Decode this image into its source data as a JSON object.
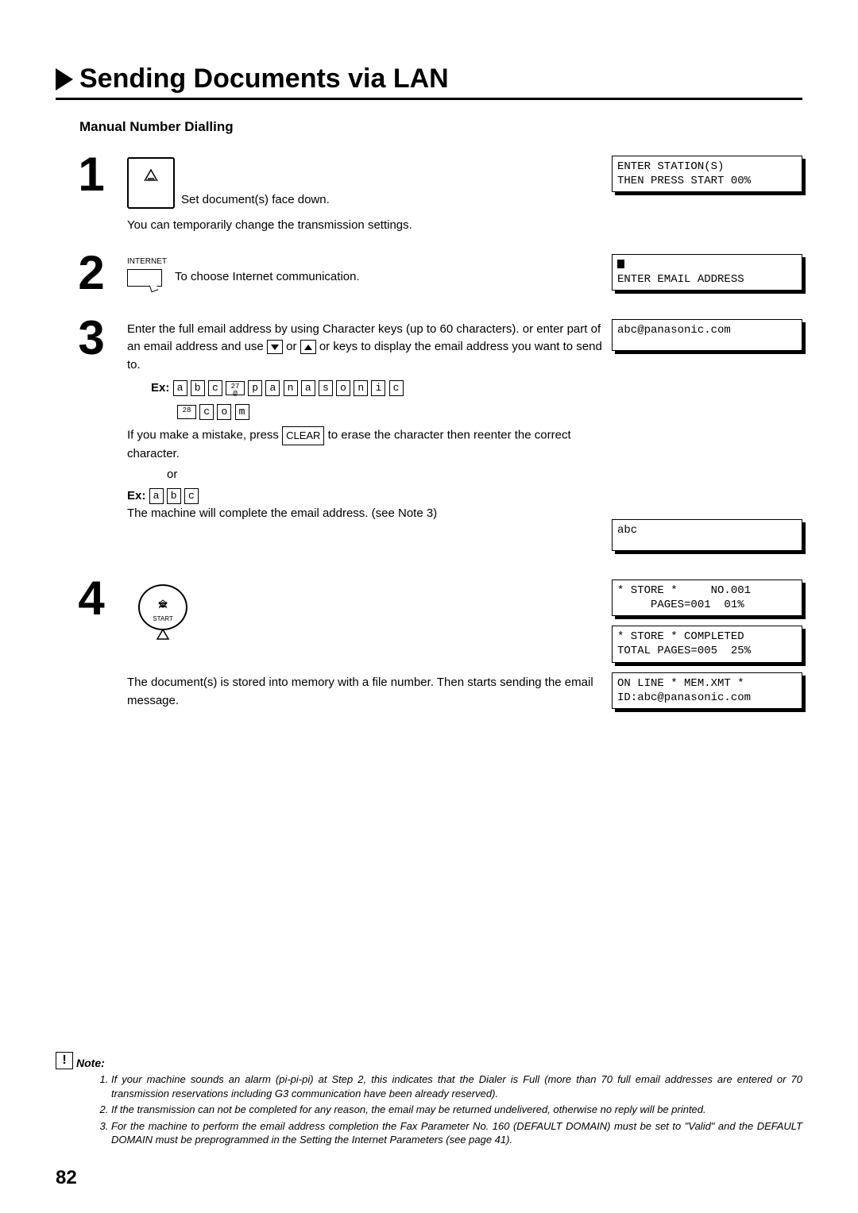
{
  "title": "Sending Documents via LAN",
  "subtitle": "Manual Number Dialling",
  "steps": {
    "1": {
      "num": "1",
      "line1": "Set document(s) face down.",
      "line2": "You can temporarily change the transmission settings.",
      "lcd1": "ENTER STATION(S)\nTHEN PRESS START 00%"
    },
    "2": {
      "num": "2",
      "internet_label": "INTERNET",
      "line1": "To choose Internet communication.",
      "lcd1_prefix": "ENTER EMAIL ADDRESS"
    },
    "3": {
      "num": "3",
      "para1": "Enter the full email address by using Character keys (up to 60 characters). or enter part of an email address and use ",
      "para1b": " or ",
      "para1c": " or keys to display the email address you want to send to.",
      "ex_label": "Ex:",
      "keys_row1": [
        "a",
        "b",
        "c"
      ],
      "key27": "27",
      "key_at": "@",
      "keys_row1b": [
        "p",
        "a",
        "n",
        "a",
        "s",
        "o",
        "n",
        "i",
        "c"
      ],
      "key28": "28",
      "key_dot": ".",
      "keys_row2": [
        "c",
        "o",
        "m"
      ],
      "para2a": "If you make a mistake, press ",
      "clear": "CLEAR",
      "para2b": " to erase the character then reenter the correct character.",
      "or": "or",
      "keys_row3": [
        "a",
        "b",
        "c"
      ],
      "para3": "The machine will complete the email address. (see Note 3)",
      "lcd1": "abc@panasonic.com",
      "lcd2": "abc"
    },
    "4": {
      "num": "4",
      "start_label": "START",
      "para": "The document(s) is stored into memory with a file number. Then starts sending the email message.",
      "lcd1": "* STORE *     NO.001\n     PAGES=001  01%",
      "lcd2": "* STORE * COMPLETED\nTOTAL PAGES=005  25%",
      "lcd3": "ON LINE * MEM.XMT *\nID:abc@panasonic.com"
    }
  },
  "note": {
    "icon": "!",
    "label": "Note:",
    "items": [
      "If your machine sounds an alarm (pi-pi-pi) at Step 2, this indicates that the Dialer is Full (more than 70 full email addresses are entered or 70 transmission reservations including G3 communication have been already reserved).",
      "If the transmission can not be completed for any reason, the email may be returned undelivered, otherwise no reply will be printed.",
      "For the machine to perform the email address completion the Fax Parameter No. 160 (DEFAULT DOMAIN) must be set to \"Valid\" and the DEFAULT DOMAIN must be preprogrammed in the Setting the Internet Parameters (see page 41)."
    ]
  },
  "page_number": "82"
}
